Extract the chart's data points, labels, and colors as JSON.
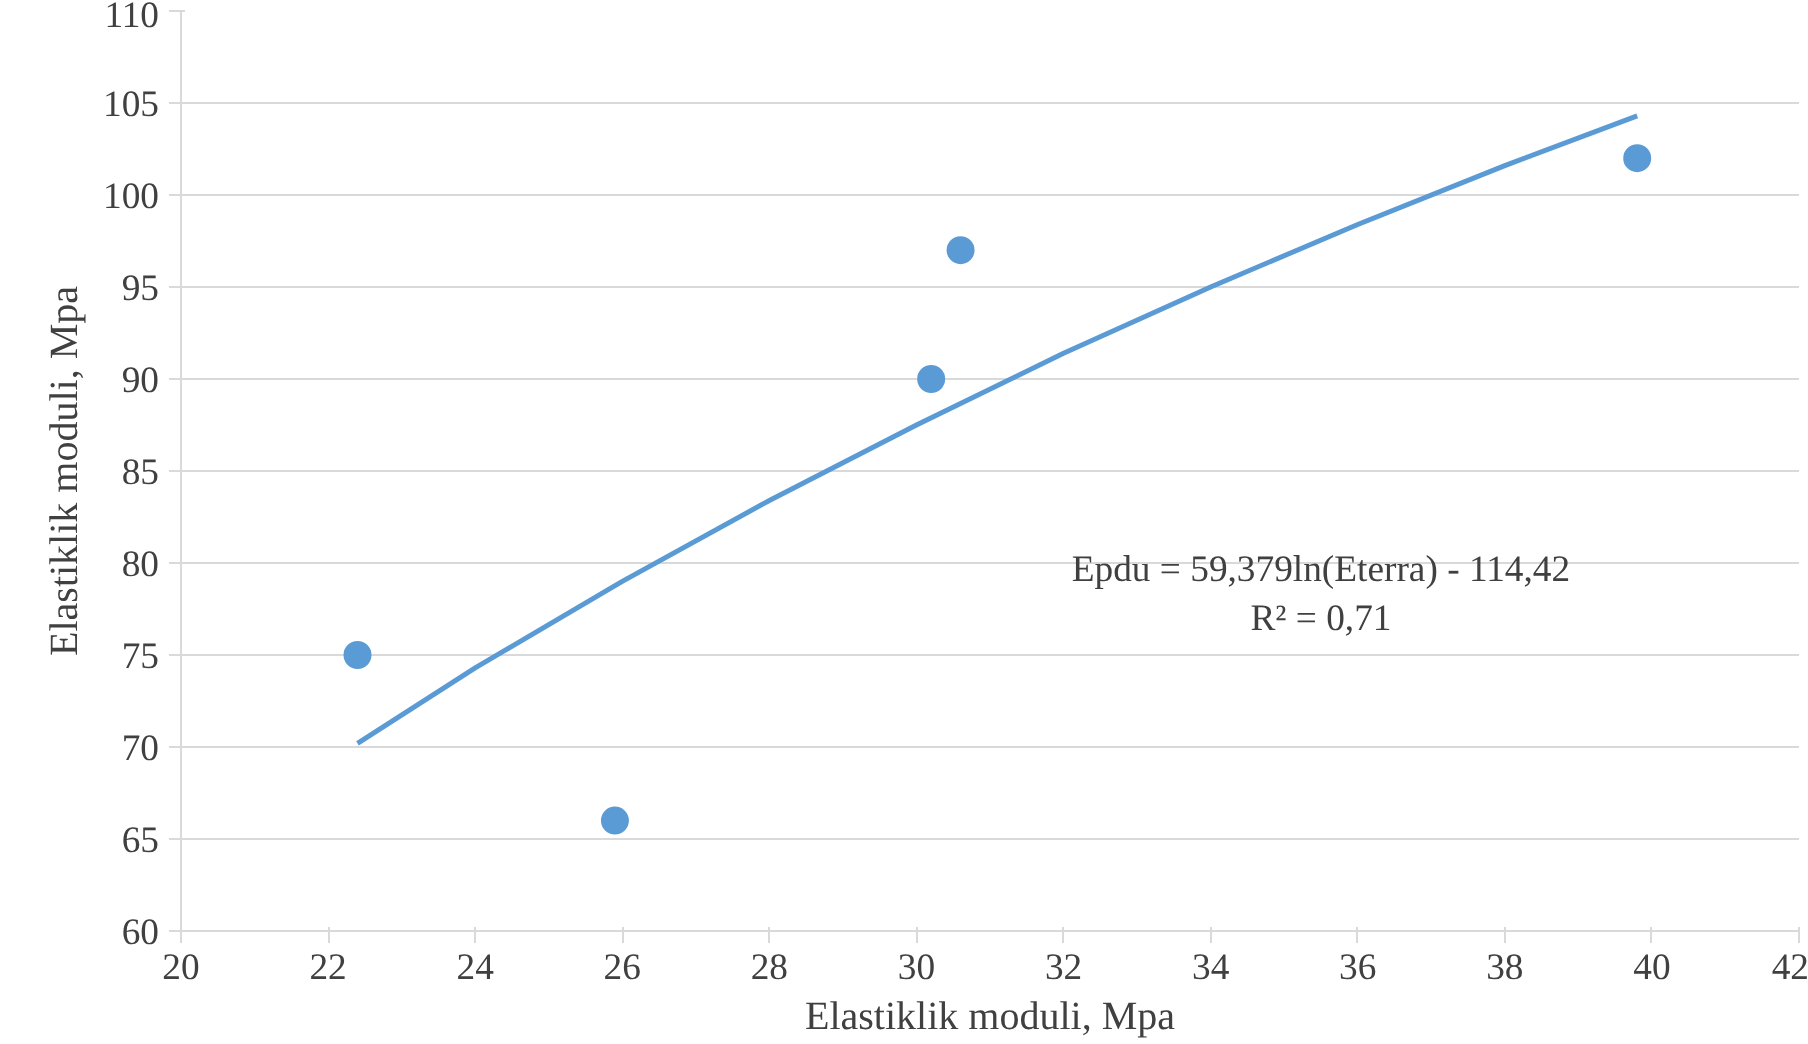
{
  "chart_data": {
    "type": "scatter",
    "xlabel": "Elastiklik moduli, Mpa",
    "ylabel": "Elastiklik moduli, Mpa",
    "xlim": [
      20,
      42
    ],
    "xticks": [
      20,
      22,
      24,
      26,
      28,
      30,
      32,
      34,
      36,
      38,
      40,
      42
    ],
    "ylim": [
      60,
      110
    ],
    "yticks": [
      60,
      65,
      70,
      75,
      80,
      85,
      90,
      95,
      100,
      105,
      110
    ],
    "grid": "y",
    "marker": "circle",
    "series": [
      {
        "color": "#5b9bd5",
        "x": [
          22.4,
          25.9,
          30.2,
          30.6,
          39.8
        ],
        "values": [
          75,
          66,
          90,
          97,
          102
        ]
      },
      {
        "type": "line",
        "marker": "none",
        "color": "#5b9bd5",
        "x": [
          22.4,
          24,
          26,
          28,
          30,
          32,
          34,
          36,
          38,
          39.8
        ],
        "values": [
          70.2,
          74.3,
          79,
          83.4,
          87.5,
          91.4,
          95,
          98.4,
          101.6,
          104.3
        ]
      }
    ],
    "annotations": [
      "Epdu = 59,379ln(Eterra) - 114,42",
      "R² = 0,71"
    ]
  }
}
